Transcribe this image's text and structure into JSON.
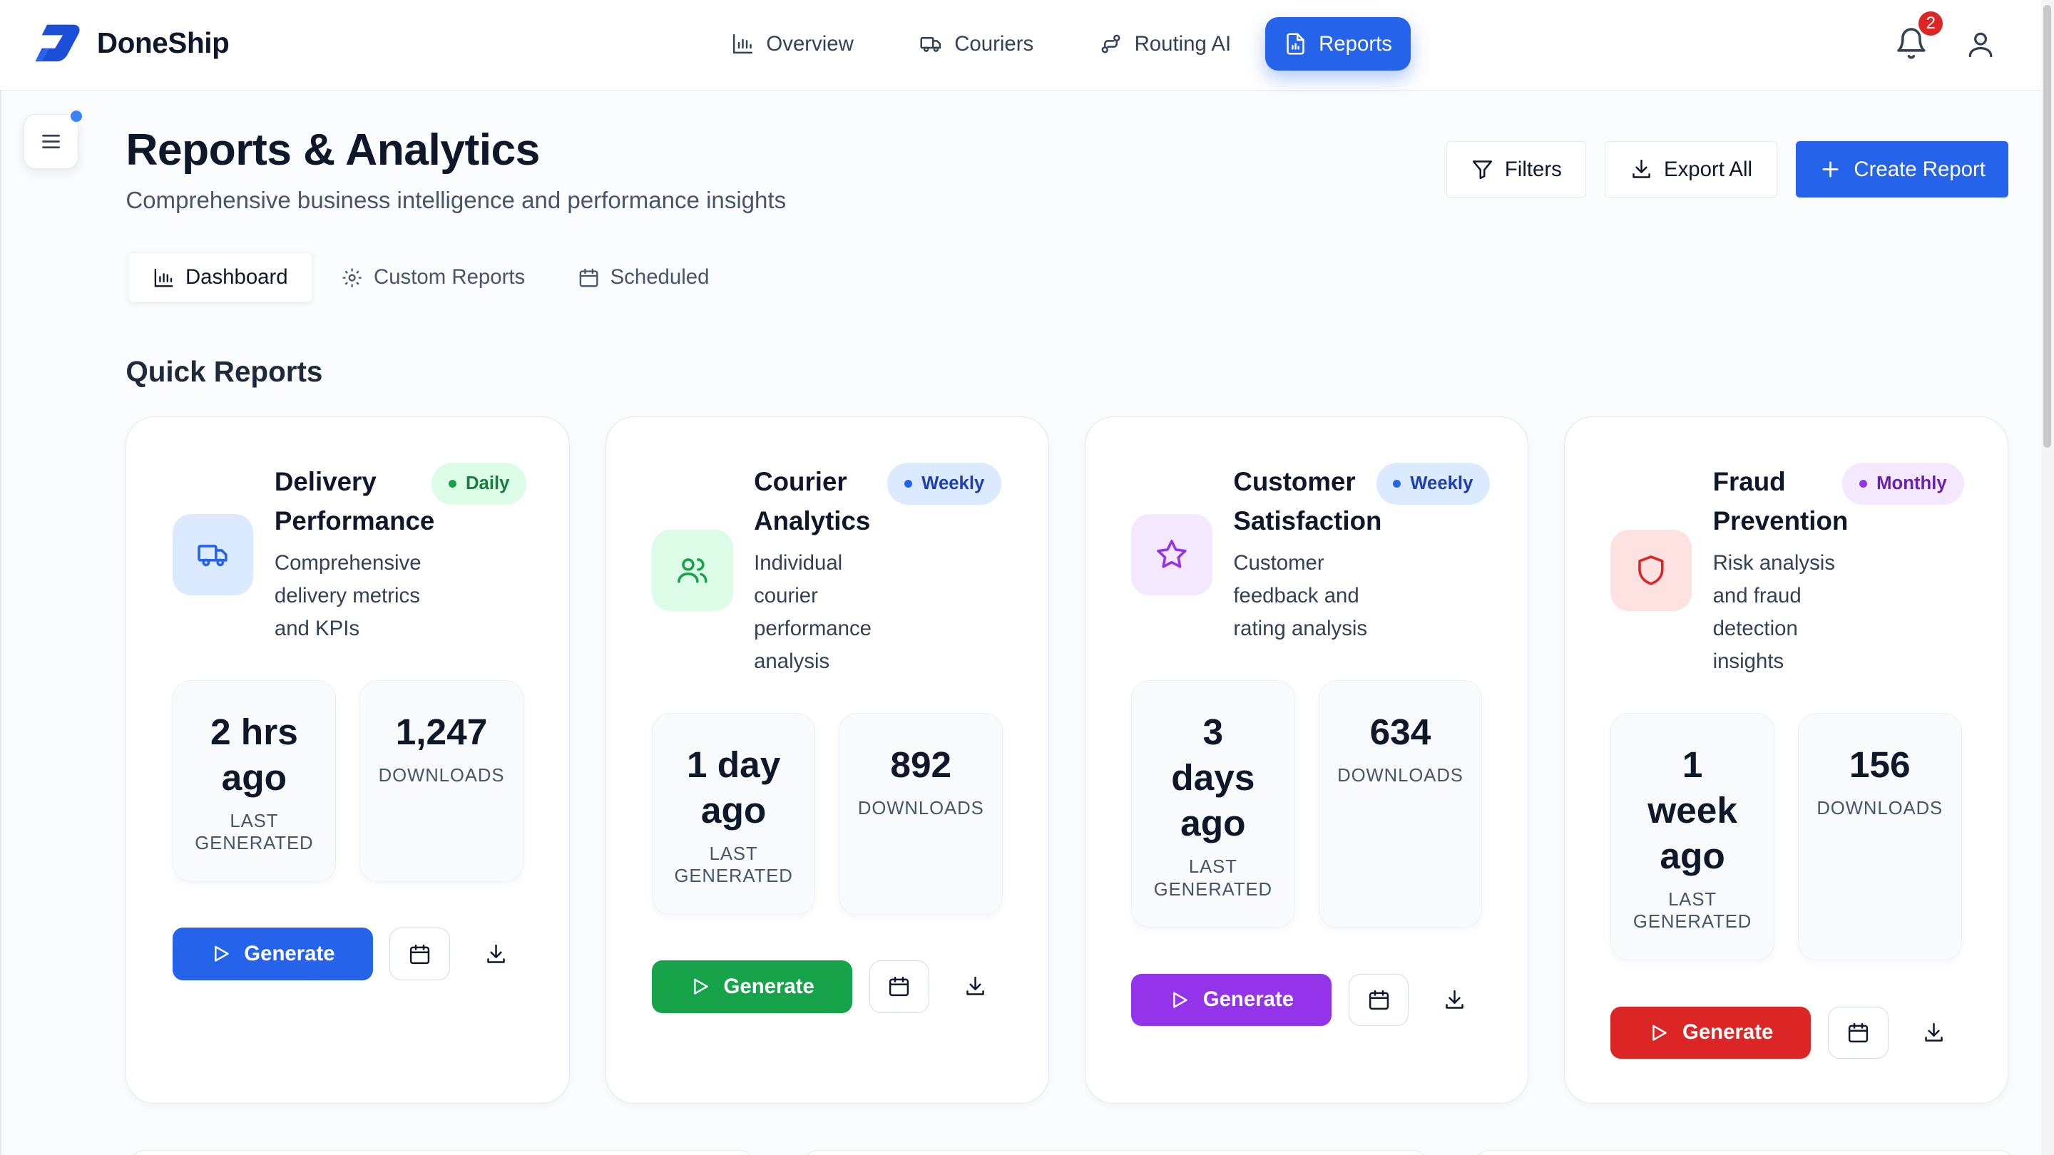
{
  "app": {
    "name": "DoneShip",
    "notifications_count": "2"
  },
  "nav": [
    {
      "label": "Overview",
      "icon": "bar-chart-icon"
    },
    {
      "label": "Couriers",
      "icon": "truck-icon"
    },
    {
      "label": "Routing AI",
      "icon": "route-icon"
    },
    {
      "label": "Reports",
      "icon": "file-chart-icon",
      "active": true
    }
  ],
  "page": {
    "title": "Reports & Analytics",
    "subtitle": "Comprehensive business intelligence and performance insights"
  },
  "actions": {
    "filters": "Filters",
    "export_all": "Export All",
    "create_report": "Create Report"
  },
  "tabs": [
    {
      "label": "Dashboard",
      "active": true
    },
    {
      "label": "Custom Reports"
    },
    {
      "label": "Scheduled"
    }
  ],
  "section": {
    "quick_reports": "Quick Reports"
  },
  "cards": [
    {
      "title": "Delivery Performance",
      "description": "Comprehensive delivery metrics and KPIs",
      "frequency": "Daily",
      "last_generated": "2 hrs ago",
      "last_generated_label": "LAST GENERATED",
      "downloads": "1,247",
      "downloads_label": "DOWNLOADS",
      "generate_label": "Generate",
      "color": "#2563eb"
    },
    {
      "title": "Courier Analytics",
      "description": "Individual courier performance analysis",
      "frequency": "Weekly",
      "last_generated": "1 day ago",
      "last_generated_label": "LAST GENERATED",
      "downloads": "892",
      "downloads_label": "DOWNLOADS",
      "generate_label": "Generate",
      "color": "#16a34a"
    },
    {
      "title": "Customer Satisfaction",
      "description": "Customer feedback and rating analysis",
      "frequency": "Weekly",
      "last_generated": "3 days ago",
      "last_generated_label": "LAST GENERATED",
      "downloads": "634",
      "downloads_label": "DOWNLOADS",
      "generate_label": "Generate",
      "color": "#9333ea"
    },
    {
      "title": "Fraud Prevention",
      "description": "Risk analysis and fraud detection insights",
      "frequency": "Monthly",
      "last_generated": "1 week ago",
      "last_generated_label": "LAST GENERATED",
      "downloads": "156",
      "downloads_label": "DOWNLOADS",
      "generate_label": "Generate",
      "color": "#dc2626"
    }
  ]
}
